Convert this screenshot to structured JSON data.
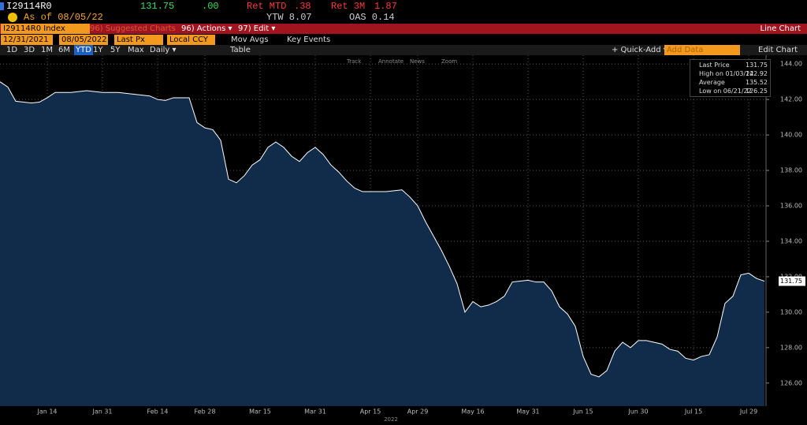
{
  "header": {
    "ticker": "I29114R0",
    "price": "131.75",
    "change": ".00",
    "ret_mtd_label": "Ret MTD",
    "ret_mtd": ".38",
    "ret_3m_label": "Ret 3M",
    "ret_3m": "1.87",
    "as_of": "As of 08/05/22",
    "ytw": "YTW 8.07",
    "oas": "OAS 0.14"
  },
  "menu": {
    "security": "I29114R0 Index",
    "suggested": "96) Suggested Charts",
    "actions": "96) Actions ▾",
    "edit": "97) Edit ▾",
    "view": "Line Chart"
  },
  "controls": {
    "start": "12/31/2021",
    "end": "08/05/2022",
    "field": "Last Px",
    "currency": "Local CCY",
    "mov_avgs": "Mov Avgs",
    "key_events": "Key Events"
  },
  "toolbar": {
    "periods": [
      "1D",
      "3D",
      "1M",
      "6M",
      "YTD",
      "1Y",
      "5Y",
      "Max"
    ],
    "frequency": "Daily ▾",
    "table": "Table",
    "quick_add": "+ Quick-Add ▾",
    "add_data": "Add Data",
    "edit_chart": "Edit Chart"
  },
  "tools": [
    "Track",
    "Annotate",
    "News",
    "Zoom"
  ],
  "legend": [
    {
      "label": "High on 01/03/22",
      "value": "142.92"
    },
    {
      "label": "Average",
      "value": "135.52"
    },
    {
      "label": "Low on 06/21/22",
      "value": "126.25"
    }
  ],
  "chart_data": {
    "type": "area",
    "x_label": "2022",
    "fill": "#112b4a",
    "categories": [
      null,
      null,
      null,
      null,
      null,
      null,
      "Jan 14",
      null,
      null,
      null,
      null,
      null,
      null,
      "Jan 31",
      null,
      null,
      null,
      null,
      null,
      null,
      "Feb 14",
      null,
      null,
      null,
      null,
      null,
      "Feb 28",
      null,
      null,
      null,
      null,
      null,
      null,
      "Mar 15",
      null,
      null,
      null,
      null,
      null,
      null,
      "Mar 31",
      null,
      null,
      null,
      null,
      null,
      null,
      "Apr 15",
      null,
      null,
      null,
      null,
      null,
      "Apr 29",
      null,
      null,
      null,
      null,
      null,
      null,
      "May 16",
      null,
      null,
      null,
      null,
      null,
      null,
      "May 31",
      null,
      null,
      null,
      null,
      null,
      null,
      "Jun 15",
      null,
      null,
      null,
      null,
      null,
      null,
      "Jun 30",
      null,
      null,
      null,
      null,
      null,
      null,
      "Jul 15",
      null,
      null,
      null,
      null,
      null,
      null,
      "Jul 29",
      null,
      null
    ],
    "series": [
      {
        "name": "Last Price",
        "color": "#ffffff",
        "values": [
          143.0,
          142.7,
          141.9,
          141.85,
          141.8,
          141.85,
          142.1,
          142.4,
          142.4,
          142.4,
          142.45,
          142.5,
          142.45,
          142.4,
          142.4,
          142.4,
          142.35,
          142.3,
          142.25,
          142.2,
          142.0,
          141.95,
          142.1,
          142.1,
          142.1,
          140.7,
          140.4,
          140.3,
          139.7,
          137.5,
          137.3,
          137.7,
          138.3,
          138.6,
          139.3,
          139.6,
          139.3,
          138.8,
          138.5,
          139.0,
          139.3,
          138.9,
          138.3,
          137.9,
          137.4,
          137.0,
          136.8,
          136.8,
          136.8,
          136.8,
          136.85,
          136.9,
          136.5,
          136.0,
          135.1,
          134.3,
          133.5,
          132.6,
          131.6,
          130.0,
          130.6,
          130.3,
          130.4,
          130.6,
          130.9,
          131.7,
          131.75,
          131.8,
          131.7,
          131.7,
          131.2,
          130.3,
          129.9,
          129.2,
          127.5,
          126.5,
          126.35,
          126.7,
          127.8,
          128.3,
          128.0,
          128.4,
          128.4,
          128.3,
          128.2,
          127.9,
          127.8,
          127.4,
          127.3,
          127.5,
          127.6,
          128.6,
          130.5,
          130.9,
          132.1,
          132.2,
          131.9,
          131.75
        ]
      }
    ],
    "ylim": [
      124.7,
      144.5
    ],
    "yticks": [
      {
        "value": 126,
        "label": "126.00"
      },
      {
        "value": 128,
        "label": "128.00"
      },
      {
        "value": 130,
        "label": "130.00"
      },
      {
        "value": 132,
        "label": "132.00"
      },
      {
        "value": 134,
        "label": "134.00"
      },
      {
        "value": 136,
        "label": "136.00"
      },
      {
        "value": 138,
        "label": "138.00"
      },
      {
        "value": 140,
        "label": "140.00"
      },
      {
        "value": 142,
        "label": "142.00"
      },
      {
        "value": 144,
        "label": "144.00"
      }
    ],
    "grid": true
  }
}
